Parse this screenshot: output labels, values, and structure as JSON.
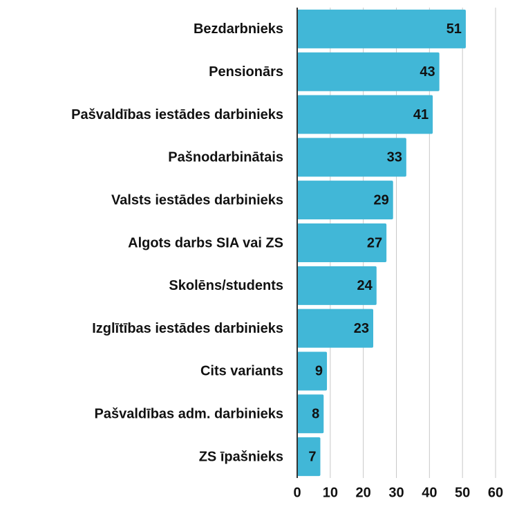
{
  "chart_data": {
    "type": "barh",
    "categories": [
      "Bezdarbnieks",
      "Pensionārs",
      "Pašvaldības iestādes darbinieks",
      "Pašnodarbinātais",
      "Valsts iestādes darbinieks",
      "Algots darbs SIA vai ZS",
      "Skolēns/students",
      "Izglītības iestādes darbinieks",
      "Cits variants",
      "Pašvaldības adm. darbinieks",
      "ZS īpašnieks"
    ],
    "values": [
      51,
      43,
      41,
      33,
      29,
      27,
      24,
      23,
      9,
      8,
      7
    ],
    "color": "#41b7d7",
    "xlim": [
      0,
      60
    ],
    "xticks": [
      0,
      10,
      20,
      30,
      40,
      50,
      60
    ],
    "grid": true
  }
}
